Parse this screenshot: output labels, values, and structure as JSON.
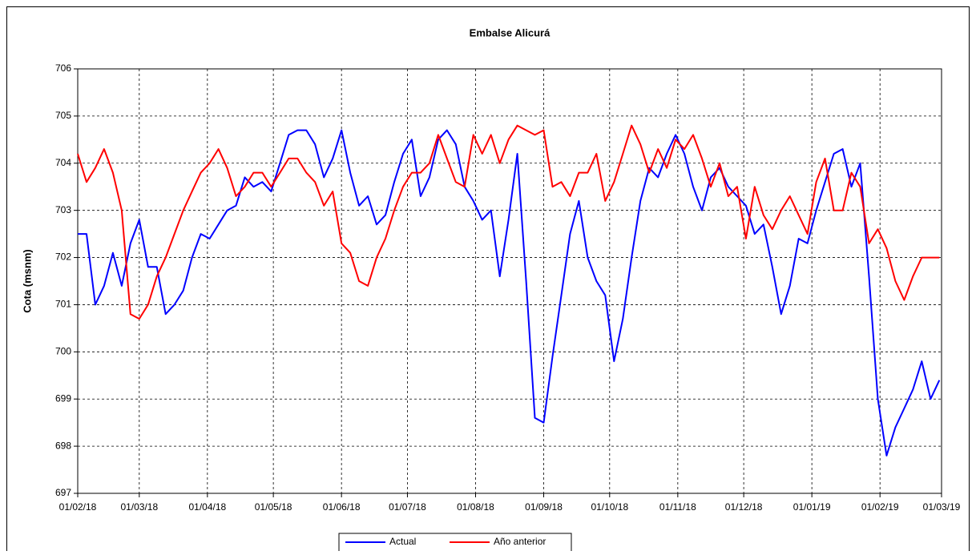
{
  "chart_data": {
    "type": "line",
    "title": "Embalse Alicurá",
    "y_label": "Cota (msnm)",
    "x": [
      0,
      4,
      8,
      12,
      16,
      20,
      24,
      28,
      32,
      36,
      40,
      44,
      48,
      52,
      56,
      60,
      64,
      68,
      72,
      76,
      80,
      84,
      88,
      92,
      96,
      100,
      104,
      108,
      112,
      116,
      120,
      124,
      128,
      132,
      136,
      140,
      144,
      148,
      152,
      156,
      160,
      164,
      168,
      172,
      176,
      180,
      184,
      188,
      192,
      196,
      200,
      204,
      208,
      212,
      216,
      220,
      224,
      228,
      232,
      236,
      240,
      244,
      248,
      252,
      256,
      260,
      264,
      268,
      272,
      276,
      280,
      284,
      288,
      292,
      296,
      300,
      304,
      308,
      312,
      316,
      320,
      324,
      328,
      332,
      336,
      340,
      344,
      348,
      352,
      356,
      360,
      364,
      368,
      372,
      376,
      380,
      384,
      388,
      392
    ],
    "xlim": [
      0,
      393
    ],
    "xticks": [
      {
        "value": 0,
        "label": "01/02/18"
      },
      {
        "value": 28,
        "label": "01/03/18"
      },
      {
        "value": 59,
        "label": "01/04/18"
      },
      {
        "value": 89,
        "label": "01/05/18"
      },
      {
        "value": 120,
        "label": "01/06/18"
      },
      {
        "value": 150,
        "label": "01/07/18"
      },
      {
        "value": 181,
        "label": "01/08/18"
      },
      {
        "value": 212,
        "label": "01/09/18"
      },
      {
        "value": 242,
        "label": "01/10/18"
      },
      {
        "value": 273,
        "label": "01/11/18"
      },
      {
        "value": 303,
        "label": "01/12/18"
      },
      {
        "value": 334,
        "label": "01/01/19"
      },
      {
        "value": 365,
        "label": "01/02/19"
      },
      {
        "value": 393,
        "label": "01/03/19"
      }
    ],
    "ylim": [
      697,
      706
    ],
    "yticks": [
      697,
      698,
      699,
      700,
      701,
      702,
      703,
      704,
      705,
      706
    ],
    "grid": true,
    "series": [
      {
        "name": "Actual",
        "color": "#0000ff",
        "values": [
          702.5,
          702.5,
          701.0,
          701.4,
          702.1,
          701.4,
          702.3,
          702.8,
          701.8,
          701.8,
          700.8,
          701.0,
          701.3,
          702.0,
          702.5,
          702.4,
          702.7,
          703.0,
          703.1,
          703.7,
          703.5,
          703.6,
          703.4,
          704.0,
          704.6,
          704.7,
          704.7,
          704.4,
          703.7,
          704.1,
          704.7,
          703.8,
          703.1,
          703.3,
          702.7,
          702.9,
          703.6,
          704.2,
          704.5,
          703.3,
          703.7,
          704.5,
          704.7,
          704.4,
          703.5,
          703.2,
          702.8,
          703.0,
          701.6,
          702.8,
          704.2,
          701.5,
          698.6,
          698.5,
          699.9,
          701.2,
          702.5,
          703.2,
          702.0,
          701.5,
          701.2,
          699.8,
          700.7,
          702.0,
          703.2,
          703.9,
          703.7,
          704.2,
          704.6,
          704.2,
          703.5,
          703.0,
          703.7,
          703.9,
          703.5,
          703.3,
          703.1,
          702.5,
          702.7,
          701.8,
          700.8,
          701.4,
          702.4,
          702.3,
          703.0,
          703.6,
          704.2,
          704.3,
          703.5,
          704.0,
          701.6,
          699.0,
          697.8,
          698.4,
          698.8,
          699.2,
          699.8,
          699.0,
          699.4
        ]
      },
      {
        "name": "Año anterior",
        "color": "#ff0000",
        "values": [
          704.2,
          703.6,
          703.9,
          704.3,
          703.8,
          703.0,
          700.8,
          700.7,
          701.0,
          701.6,
          702.0,
          702.5,
          703.0,
          703.4,
          703.8,
          704.0,
          704.3,
          703.9,
          703.3,
          703.5,
          703.8,
          703.8,
          703.5,
          703.8,
          704.1,
          704.1,
          703.8,
          703.6,
          703.1,
          703.4,
          702.3,
          702.1,
          701.5,
          701.4,
          702.0,
          702.4,
          703.0,
          703.5,
          703.8,
          703.8,
          704.0,
          704.6,
          704.1,
          703.6,
          703.5,
          704.6,
          704.2,
          704.6,
          704.0,
          704.5,
          704.8,
          704.7,
          704.6,
          704.7,
          703.5,
          703.6,
          703.3,
          703.8,
          703.8,
          704.2,
          703.2,
          703.6,
          704.2,
          704.8,
          704.4,
          703.8,
          704.3,
          703.9,
          704.5,
          704.3,
          704.6,
          704.1,
          703.5,
          704.0,
          703.3,
          703.5,
          702.4,
          703.5,
          702.9,
          702.6,
          703.0,
          703.3,
          702.9,
          702.5,
          703.6,
          704.1,
          703.0,
          703.0,
          703.8,
          703.5,
          702.3,
          702.6,
          702.2,
          701.5,
          701.1,
          701.6,
          702.0,
          702.0,
          702.0
        ]
      }
    ]
  }
}
